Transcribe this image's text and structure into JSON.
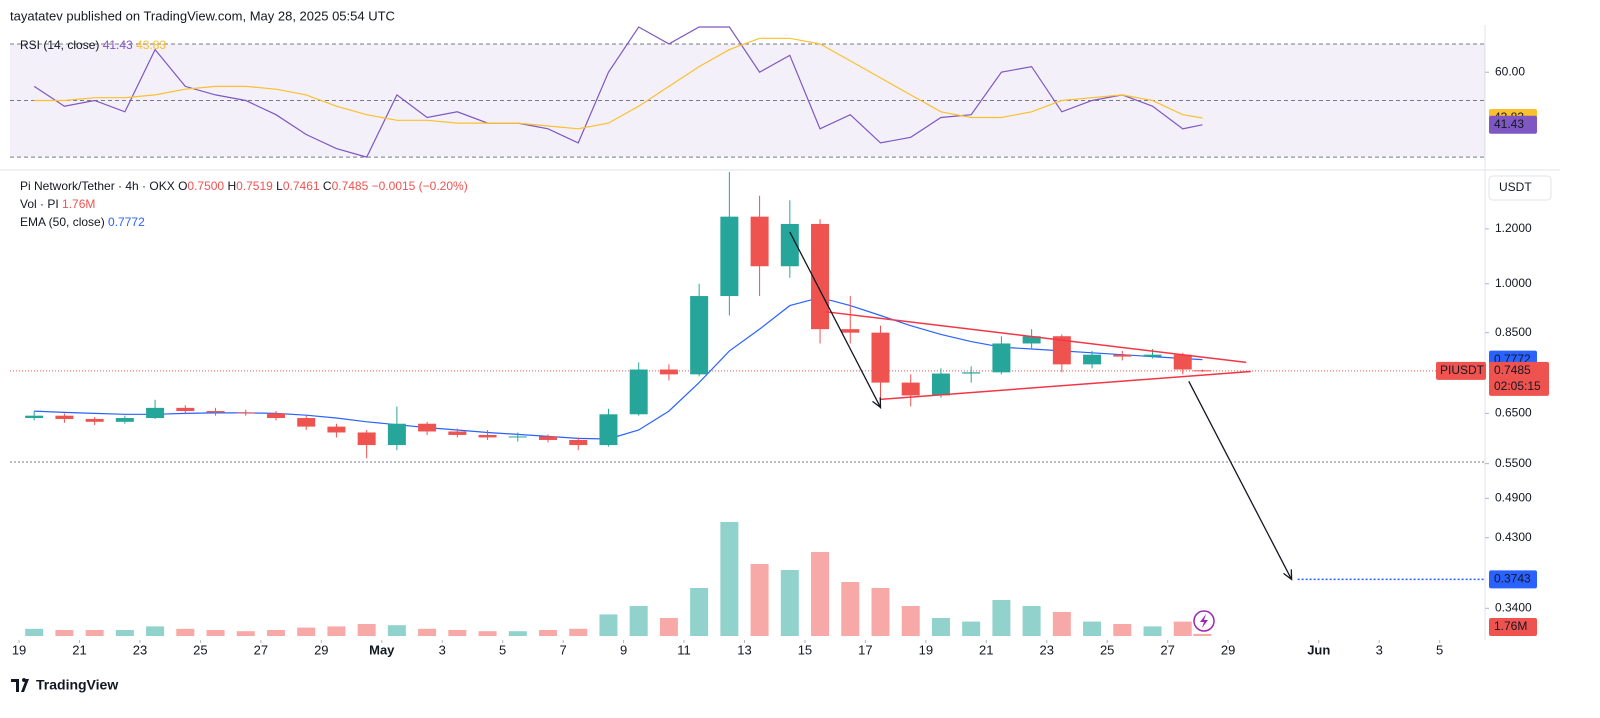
{
  "header": {
    "published": "tayatatev published on TradingView.com, May 28, 2025 05:54 UTC"
  },
  "footer": {
    "brand": "TradingView"
  },
  "chart_data": [
    {
      "type": "line",
      "title": "RSI (14, close)",
      "x": [
        0.5,
        1.5,
        2.5,
        3.5,
        4.5,
        5.5,
        6.5,
        7.5,
        8.5,
        9.5,
        10.5,
        11.5,
        12.5,
        13.5,
        14.5,
        15.5,
        16.5,
        17.5,
        18.5,
        19.5,
        20.5,
        21.5,
        22.5,
        23.5,
        24.5,
        25.5,
        26.5,
        27.5,
        28.5,
        29.5,
        30.5,
        31.5,
        32.5,
        33.5,
        34.5,
        35.5,
        36.5,
        37.5,
        38.5,
        39.15
      ],
      "series": [
        {
          "color": "#7e57c2",
          "values": [
            55,
            48,
            50,
            46,
            68,
            55,
            52,
            50,
            45,
            38,
            33,
            30,
            52,
            44,
            46,
            42,
            42,
            40,
            35,
            60,
            76,
            70,
            76,
            76,
            60,
            66,
            40,
            45,
            35,
            37,
            44,
            45,
            60,
            62,
            46,
            50,
            52,
            48,
            40,
            41.43
          ]
        },
        {
          "color": "#fbc02d",
          "values": [
            50,
            50,
            51,
            51,
            52,
            54,
            55,
            55,
            54,
            52,
            48,
            45,
            43,
            43,
            42,
            42,
            42,
            41,
            40,
            42,
            48,
            55,
            62,
            68,
            72,
            72,
            70,
            64,
            58,
            52,
            46,
            44,
            44,
            46,
            50,
            51,
            52,
            50,
            45,
            43.83
          ]
        }
      ],
      "ylim": [
        27.2,
        76.7
      ],
      "yticks": [
        {
          "value": 60,
          "label": "60.00"
        }
      ],
      "levels": [
        70,
        50,
        30
      ],
      "band_color": "#7e57c2",
      "xlim": [
        -0.3,
        48.5
      ]
    },
    {
      "type": "candlestick",
      "title": "Pi Network/Tether · 4h · OKX",
      "currency": "USDT",
      "symbol": "PIUSDT",
      "countdown": "02:05:15",
      "legend": [
        {
          "key": "O",
          "value": "0.7500"
        },
        {
          "key": "H",
          "value": "0.7519"
        },
        {
          "key": "L",
          "value": "0.7461"
        },
        {
          "key": "C",
          "value": "0.7485"
        }
      ],
      "change": "−0.0015 (−0.20%)",
      "x": [
        0.5,
        1.5,
        2.5,
        3.5,
        4.5,
        5.5,
        6.5,
        7.5,
        8.5,
        9.5,
        10.5,
        11.5,
        12.5,
        13.5,
        14.5,
        15.5,
        16.5,
        17.5,
        18.5,
        19.5,
        20.5,
        21.5,
        22.5,
        23.5,
        24.5,
        25.5,
        26.5,
        27.5,
        28.5,
        29.5,
        30.5,
        31.5,
        32.5,
        33.5,
        34.5,
        35.5,
        36.5,
        37.5,
        38.5,
        39.15
      ],
      "open": [
        0.64,
        0.645,
        0.638,
        0.632,
        0.64,
        0.662,
        0.655,
        0.652,
        0.65,
        0.64,
        0.622,
        0.61,
        0.585,
        0.628,
        0.612,
        0.605,
        0.6,
        0.602,
        0.595,
        0.585,
        0.648,
        0.752,
        0.74,
        0.96,
        1.25,
        1.06,
        1.22,
        0.86,
        0.85,
        0.72,
        0.69,
        0.742,
        0.745,
        0.82,
        0.84,
        0.765,
        0.79,
        0.785,
        0.79,
        0.75
      ],
      "high": [
        0.655,
        0.65,
        0.642,
        0.645,
        0.68,
        0.668,
        0.662,
        0.658,
        0.655,
        0.645,
        0.628,
        0.615,
        0.665,
        0.632,
        0.618,
        0.615,
        0.61,
        0.606,
        0.6,
        0.66,
        0.77,
        0.765,
        1.0,
        1.45,
        1.34,
        1.32,
        1.24,
        0.96,
        0.87,
        0.74,
        0.755,
        0.76,
        0.84,
        0.86,
        0.845,
        0.8,
        0.8,
        0.805,
        0.795,
        0.7519
      ],
      "low": [
        0.635,
        0.63,
        0.625,
        0.628,
        0.638,
        0.648,
        0.645,
        0.645,
        0.635,
        0.615,
        0.6,
        0.56,
        0.575,
        0.605,
        0.6,
        0.595,
        0.592,
        0.59,
        0.575,
        0.582,
        0.645,
        0.725,
        0.735,
        0.9,
        0.96,
        1.02,
        0.82,
        0.82,
        0.66,
        0.665,
        0.685,
        0.72,
        0.74,
        0.805,
        0.745,
        0.755,
        0.775,
        0.78,
        0.74,
        0.7461
      ],
      "close": [
        0.645,
        0.638,
        0.632,
        0.64,
        0.662,
        0.655,
        0.652,
        0.65,
        0.64,
        0.622,
        0.61,
        0.585,
        0.628,
        0.612,
        0.605,
        0.6,
        0.602,
        0.595,
        0.585,
        0.648,
        0.752,
        0.74,
        0.96,
        1.25,
        1.06,
        1.22,
        0.86,
        0.85,
        0.72,
        0.69,
        0.742,
        0.745,
        0.82,
        0.84,
        0.765,
        0.79,
        0.785,
        0.79,
        0.752,
        0.7485
      ],
      "up_color": "#26a69a",
      "down_color": "#ef5350",
      "ema": {
        "title": "EMA (50, close)",
        "color": "#2962ff",
        "values": [
          0.655,
          0.652,
          0.65,
          0.648,
          0.648,
          0.65,
          0.651,
          0.651,
          0.65,
          0.646,
          0.64,
          0.632,
          0.626,
          0.62,
          0.615,
          0.61,
          0.606,
          0.602,
          0.598,
          0.597,
          0.615,
          0.655,
          0.72,
          0.8,
          0.86,
          0.93,
          0.955,
          0.93,
          0.9,
          0.87,
          0.845,
          0.825,
          0.81,
          0.805,
          0.8,
          0.795,
          0.79,
          0.785,
          0.78,
          0.7772
        ]
      },
      "volume": {
        "title": "Vol · PI",
        "values": [
          6,
          5,
          5,
          5,
          8,
          6,
          5,
          4,
          5,
          7,
          8,
          10,
          9,
          6,
          5,
          4,
          4,
          5,
          6,
          18,
          25,
          15,
          40,
          95,
          60,
          55,
          70,
          45,
          40,
          25,
          15,
          12,
          30,
          25,
          20,
          12,
          10,
          8,
          12,
          1.76
        ],
        "value_labels": [
          null,
          null,
          null,
          null,
          null,
          null,
          null,
          null,
          null,
          null,
          null,
          null,
          null,
          null,
          null,
          null,
          null,
          null,
          null,
          null,
          null,
          null,
          null,
          null,
          null,
          null,
          null,
          null,
          null,
          null,
          null,
          null,
          null,
          null,
          null,
          null,
          null,
          null,
          null,
          "1.76M"
        ]
      },
      "log": true,
      "grid": false,
      "ylim": [
        0.306,
        1.45
      ],
      "yticks": [
        {
          "value": 1.2,
          "label": "1.2000"
        },
        {
          "value": 1.0,
          "label": "1.0000"
        },
        {
          "value": 0.85,
          "label": "0.8500"
        },
        {
          "value": 0.65,
          "label": "0.6500"
        },
        {
          "value": 0.55,
          "label": "0.5500"
        },
        {
          "value": 0.49,
          "label": "0.4900"
        },
        {
          "value": 0.43,
          "label": "0.4300"
        },
        {
          "value": 0.34,
          "label": "0.3400"
        }
      ],
      "xlim": [
        -0.3,
        48.5
      ],
      "xticks": [
        {
          "value": 0,
          "label": "19"
        },
        {
          "value": 2,
          "label": "21"
        },
        {
          "value": 4,
          "label": "23"
        },
        {
          "value": 6,
          "label": "25"
        },
        {
          "value": 8,
          "label": "27"
        },
        {
          "value": 10,
          "label": "29"
        },
        {
          "value": 12,
          "label": "May"
        },
        {
          "value": 14,
          "label": "3"
        },
        {
          "value": 16,
          "label": "5"
        },
        {
          "value": 18,
          "label": "7"
        },
        {
          "value": 20,
          "label": "9"
        },
        {
          "value": 22,
          "label": "11"
        },
        {
          "value": 24,
          "label": "13"
        },
        {
          "value": 26,
          "label": "15"
        },
        {
          "value": 28,
          "label": "17"
        },
        {
          "value": 30,
          "label": "19"
        },
        {
          "value": 32,
          "label": "21"
        },
        {
          "value": 34,
          "label": "23"
        },
        {
          "value": 36,
          "label": "25"
        },
        {
          "value": 38,
          "label": "27"
        },
        {
          "value": 40,
          "label": "29"
        },
        {
          "value": 43,
          "label": "Jun"
        },
        {
          "value": 45,
          "label": "3"
        },
        {
          "value": 47,
          "label": "5"
        }
      ],
      "drawings": {
        "trend_lines": [
          {
            "color": "#f23645",
            "points": [
              [
                26.7,
                0.911
              ],
              [
                40.6,
                0.77
              ]
            ]
          },
          {
            "color": "#f23645",
            "points": [
              [
                28.5,
                0.681
              ],
              [
                40.75,
                0.747
              ]
            ]
          }
        ],
        "arrows": [
          {
            "color": "#131722",
            "points": [
              [
                25.5,
                1.188
              ],
              [
                28.5,
                0.663
              ]
            ]
          },
          {
            "color": "#131722",
            "points": [
              [
                38.7,
                0.723
              ],
              [
                42.1,
                0.3743
              ]
            ]
          }
        ],
        "hlines": [
          0.553
        ],
        "target": {
          "from": 42.3,
          "value": 0.3743,
          "label": "0.3743",
          "color": "#2962ff"
        }
      }
    }
  ]
}
